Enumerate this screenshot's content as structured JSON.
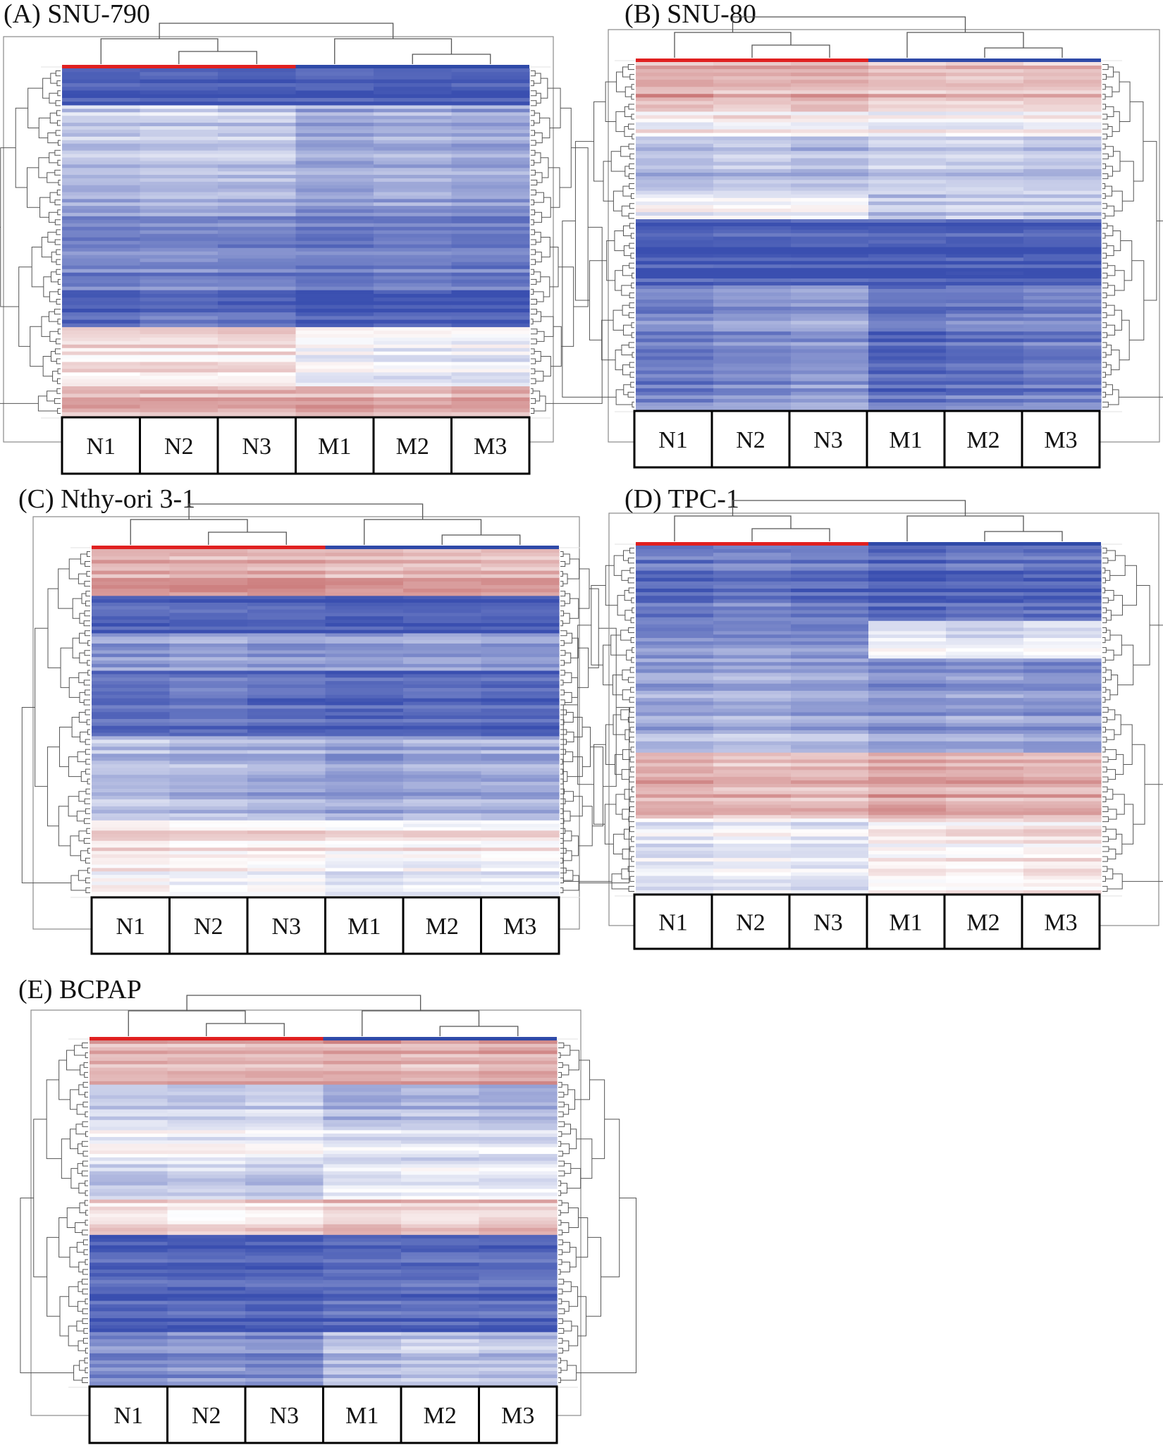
{
  "figure": {
    "colors": {
      "low": "#3a4fb0",
      "mid": "#ffffff",
      "high": "#b23a3a",
      "group_n": "#e02020",
      "group_m": "#2f4aa8"
    }
  },
  "chart_data": [
    {
      "type": "heatmap",
      "id": "A",
      "title": "(A) SNU-790",
      "columns": [
        "N1",
        "N2",
        "N3",
        "M1",
        "M2",
        "M3"
      ],
      "column_groups": [
        {
          "name": "N",
          "columns": [
            "N1",
            "N2",
            "N3"
          ],
          "color": "#e02020"
        },
        {
          "name": "M",
          "columns": [
            "M1",
            "M2",
            "M3"
          ],
          "color": "#2f4aa8"
        }
      ],
      "value_range": [
        -1,
        1
      ],
      "row_blocks": [
        {
          "weight": 5,
          "values": [
            -0.95,
            -0.95,
            -0.95,
            -0.95,
            -0.95,
            -0.95
          ]
        },
        {
          "weight": 8,
          "values": [
            -0.3,
            -0.25,
            -0.3,
            -0.5,
            -0.45,
            -0.5
          ]
        },
        {
          "weight": 7,
          "values": [
            -0.45,
            -0.4,
            -0.45,
            -0.55,
            -0.5,
            -0.55
          ]
        },
        {
          "weight": 10,
          "values": [
            -0.7,
            -0.65,
            -0.7,
            -0.75,
            -0.7,
            -0.75
          ]
        },
        {
          "weight": 5,
          "values": [
            -0.85,
            -0.8,
            -0.85,
            -0.95,
            -0.9,
            -0.95
          ]
        },
        {
          "weight": 8,
          "values": [
            0.15,
            0.15,
            0.15,
            -0.05,
            -0.1,
            -0.1
          ]
        },
        {
          "weight": 4,
          "values": [
            0.35,
            0.35,
            0.35,
            0.4,
            0.35,
            0.4
          ]
        }
      ]
    },
    {
      "type": "heatmap",
      "id": "B",
      "title": "(B) SNU-80",
      "columns": [
        "N1",
        "N2",
        "N3",
        "M1",
        "M2",
        "M3"
      ],
      "column_groups": [
        {
          "name": "N",
          "columns": [
            "N1",
            "N2",
            "N3"
          ],
          "color": "#e02020"
        },
        {
          "name": "M",
          "columns": [
            "M1",
            "M2",
            "M3"
          ],
          "color": "#2f4aa8"
        }
      ],
      "value_range": [
        -1,
        1
      ],
      "row_blocks": [
        {
          "weight": 6,
          "values": [
            0.45,
            0.4,
            0.45,
            0.35,
            0.35,
            0.35
          ]
        },
        {
          "weight": 3,
          "values": [
            0.05,
            0.1,
            0.05,
            0.0,
            0.0,
            0.05
          ]
        },
        {
          "weight": 7,
          "values": [
            -0.4,
            -0.35,
            -0.4,
            -0.3,
            -0.3,
            -0.35
          ]
        },
        {
          "weight": 3,
          "values": [
            -0.05,
            -0.1,
            -0.05,
            -0.35,
            -0.3,
            -0.35
          ]
        },
        {
          "weight": 8,
          "values": [
            -0.95,
            -0.95,
            -0.95,
            -0.95,
            -0.95,
            -0.95
          ]
        },
        {
          "weight": 15,
          "values": [
            -0.7,
            -0.6,
            -0.55,
            -0.8,
            -0.75,
            -0.7
          ]
        }
      ]
    },
    {
      "type": "heatmap",
      "id": "C",
      "title": "(C) Nthy-ori 3-1",
      "columns": [
        "N1",
        "N2",
        "N3",
        "M1",
        "M2",
        "M3"
      ],
      "column_groups": [
        {
          "name": "N",
          "columns": [
            "N1",
            "N2",
            "N3"
          ],
          "color": "#e02020"
        },
        {
          "name": "M",
          "columns": [
            "M1",
            "M2",
            "M3"
          ],
          "color": "#2f4aa8"
        }
      ],
      "value_range": [
        -1,
        1
      ],
      "row_blocks": [
        {
          "weight": 5,
          "values": [
            0.45,
            0.45,
            0.45,
            0.4,
            0.4,
            0.4
          ]
        },
        {
          "weight": 4,
          "values": [
            -0.9,
            -0.9,
            -0.9,
            -0.95,
            -0.95,
            -0.95
          ]
        },
        {
          "weight": 4,
          "values": [
            -0.6,
            -0.55,
            -0.6,
            -0.6,
            -0.55,
            -0.6
          ]
        },
        {
          "weight": 7,
          "values": [
            -0.85,
            -0.8,
            -0.85,
            -0.9,
            -0.85,
            -0.9
          ]
        },
        {
          "weight": 9,
          "values": [
            -0.35,
            -0.4,
            -0.45,
            -0.5,
            -0.45,
            -0.45
          ]
        },
        {
          "weight": 4,
          "values": [
            0.2,
            0.15,
            0.15,
            0.1,
            0.1,
            0.1
          ]
        },
        {
          "weight": 4,
          "values": [
            0.05,
            0.0,
            0.0,
            -0.15,
            -0.1,
            -0.1
          ]
        }
      ]
    },
    {
      "type": "heatmap",
      "id": "D",
      "title": "(D) TPC-1",
      "columns": [
        "N1",
        "N2",
        "N3",
        "M1",
        "M2",
        "M3"
      ],
      "column_groups": [
        {
          "name": "N",
          "columns": [
            "N1",
            "N2",
            "N3"
          ],
          "color": "#e02020"
        },
        {
          "name": "M",
          "columns": [
            "M1",
            "M2",
            "M3"
          ],
          "color": "#2f4aa8"
        }
      ],
      "value_range": [
        -1,
        1
      ],
      "row_blocks": [
        {
          "weight": 8,
          "values": [
            -0.8,
            -0.75,
            -0.8,
            -0.9,
            -0.85,
            -0.85
          ]
        },
        {
          "weight": 4,
          "values": [
            -0.65,
            -0.6,
            -0.65,
            -0.1,
            -0.15,
            -0.1
          ]
        },
        {
          "weight": 8,
          "values": [
            -0.5,
            -0.45,
            -0.5,
            -0.6,
            -0.55,
            -0.6
          ]
        },
        {
          "weight": 2,
          "values": [
            -0.3,
            -0.25,
            -0.3,
            -0.45,
            -0.4,
            -0.45
          ]
        },
        {
          "weight": 7,
          "values": [
            0.4,
            0.35,
            0.35,
            0.45,
            0.4,
            0.4
          ]
        },
        {
          "weight": 8,
          "values": [
            -0.1,
            -0.05,
            -0.1,
            0.1,
            0.1,
            0.15
          ]
        }
      ]
    },
    {
      "type": "heatmap",
      "id": "E",
      "title": "(E) BCPAP",
      "columns": [
        "N1",
        "N2",
        "N3",
        "M1",
        "M2",
        "M3"
      ],
      "column_groups": [
        {
          "name": "N",
          "columns": [
            "N1",
            "N2",
            "N3"
          ],
          "color": "#e02020"
        },
        {
          "name": "M",
          "columns": [
            "M1",
            "M2",
            "M3"
          ],
          "color": "#2f4aa8"
        }
      ],
      "value_range": [
        -1,
        1
      ],
      "row_blocks": [
        {
          "weight": 5,
          "values": [
            0.4,
            0.4,
            0.4,
            0.45,
            0.4,
            0.45
          ]
        },
        {
          "weight": 4,
          "values": [
            -0.25,
            -0.3,
            -0.25,
            -0.45,
            -0.4,
            -0.45
          ]
        },
        {
          "weight": 5,
          "values": [
            -0.05,
            -0.05,
            -0.1,
            -0.2,
            -0.2,
            -0.2
          ]
        },
        {
          "weight": 4,
          "values": [
            -0.3,
            -0.25,
            -0.3,
            -0.1,
            -0.05,
            -0.1
          ]
        },
        {
          "weight": 4,
          "values": [
            0.2,
            0.15,
            0.2,
            0.3,
            0.25,
            0.3
          ]
        },
        {
          "weight": 11,
          "values": [
            -0.9,
            -0.9,
            -0.9,
            -0.85,
            -0.85,
            -0.85
          ]
        },
        {
          "weight": 6,
          "values": [
            -0.65,
            -0.6,
            -0.65,
            -0.35,
            -0.3,
            -0.35
          ]
        }
      ]
    }
  ]
}
